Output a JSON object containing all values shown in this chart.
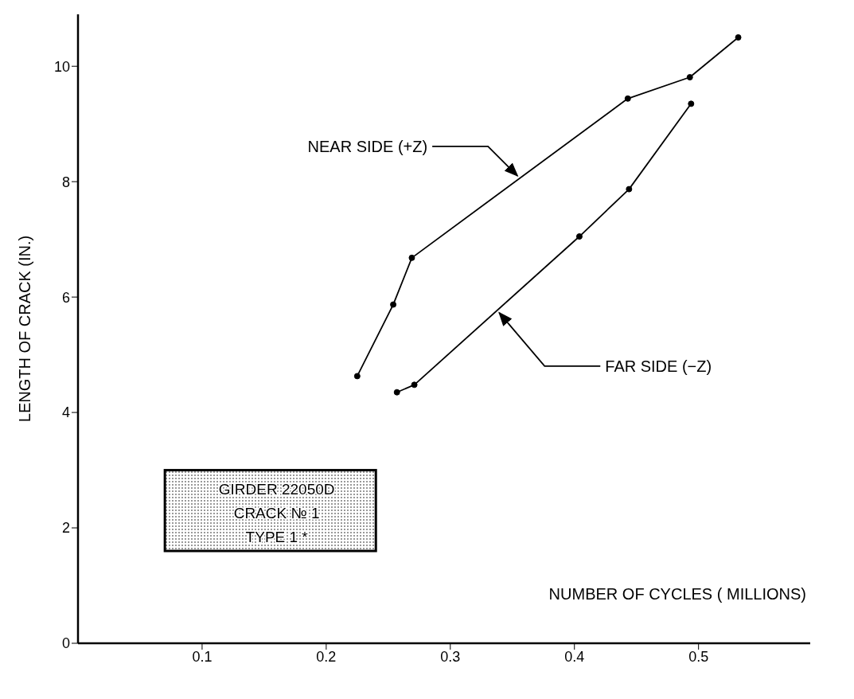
{
  "chart_data": {
    "type": "line",
    "xlabel": "NUMBER OF CYCLES ( MILLIONS)",
    "ylabel": "LENGTH OF CRACK (IN.)",
    "xlim": [
      0,
      0.59
    ],
    "xticks": [
      0.1,
      0.2,
      0.3,
      0.4,
      0.5
    ],
    "ylim": [
      0,
      10.9
    ],
    "yticks": [
      0,
      2,
      4,
      6,
      8,
      10
    ],
    "grid": false,
    "legend": false,
    "marker": "circle",
    "line_style": "solid",
    "series": [
      {
        "color": "#000000",
        "x": [
          0.225,
          0.254,
          0.269,
          0.443,
          0.493,
          0.532
        ],
        "values": [
          4.63,
          5.87,
          6.68,
          9.44,
          9.81,
          10.5
        ]
      },
      {
        "color": "#000000",
        "x": [
          0.257,
          0.271,
          0.404,
          0.444,
          0.494
        ],
        "values": [
          4.35,
          4.48,
          7.05,
          7.87,
          9.35
        ]
      }
    ],
    "annotations": [
      {
        "text": "NEAR SIDE (+Z)",
        "x": 0.356,
        "y": 8.06
      },
      {
        "text": "FAR SIDE (−Z)",
        "x": 0.3375,
        "y": 5.77
      },
      "GIRDER 22050D",
      "CRACK № 1",
      "TYPE 1 *"
    ]
  }
}
